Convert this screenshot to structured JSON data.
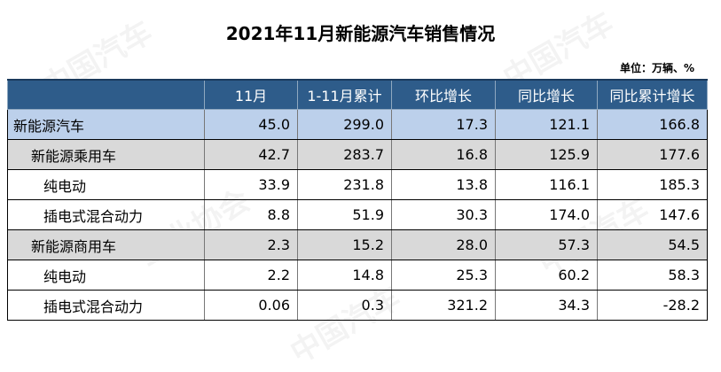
{
  "title": "2021年11月新能源汽车销售情况",
  "unit": "单位：万辆、%",
  "headers": [
    "",
    "11月",
    "1-11月累计",
    "环比增长",
    "同比增长",
    "同比累计增长"
  ],
  "rows": [
    {
      "label": "新能源汽车",
      "level": "total",
      "values": [
        "45.0",
        "299.0",
        "17.3",
        "121.1",
        "166.8"
      ]
    },
    {
      "label": "新能源乘用车",
      "level": "sub",
      "values": [
        "42.7",
        "283.7",
        "16.8",
        "125.9",
        "177.6"
      ]
    },
    {
      "label": "纯电动",
      "level": "leaf",
      "values": [
        "33.9",
        "231.8",
        "13.8",
        "116.1",
        "185.3"
      ]
    },
    {
      "label": "插电式混合动力",
      "level": "leaf",
      "values": [
        "8.8",
        "51.9",
        "30.3",
        "174.0",
        "147.6"
      ]
    },
    {
      "label": "新能源商用车",
      "level": "sub",
      "values": [
        "2.3",
        "15.2",
        "28.0",
        "57.3",
        "54.5"
      ]
    },
    {
      "label": "纯电动",
      "level": "leaf",
      "values": [
        "2.2",
        "14.8",
        "25.3",
        "60.2",
        "58.3"
      ]
    },
    {
      "label": "插电式混合动力",
      "level": "leaf",
      "values": [
        "0.06",
        "0.3",
        "321.2",
        "34.3",
        "-28.2"
      ]
    }
  ]
}
